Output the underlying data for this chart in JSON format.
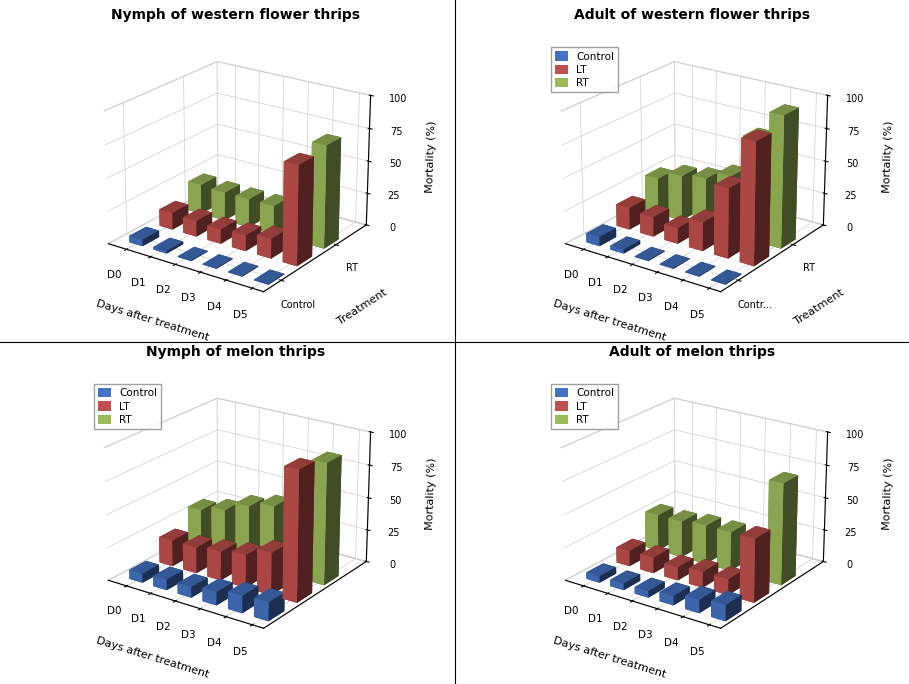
{
  "charts": [
    {
      "title": "Nymph of western flower thrips",
      "xlabel": "Days after treatment",
      "ylabel": "Mortality (%)",
      "zlabel": "Treatment",
      "days": [
        "D0",
        "D1",
        "D2",
        "D3",
        "D4",
        "D5"
      ],
      "control": [
        5,
        2,
        0,
        0,
        0,
        0
      ],
      "LT": [
        13,
        12,
        11,
        12,
        15,
        75
      ],
      "RT": [
        23,
        22,
        22,
        22,
        20,
        78
      ],
      "show_legend": false,
      "y_axis_labels": [
        "RT",
        "Control"
      ],
      "y_axis_label": "Treatment"
    },
    {
      "title": "Adult of western flower thrips",
      "xlabel": "Days after treatment",
      "ylabel": "Mortality (%)",
      "days": [
        "D0",
        "D1",
        "D2",
        "D3",
        "D4",
        "D5"
      ],
      "control": [
        7,
        3,
        0,
        0,
        0,
        0
      ],
      "LT": [
        17,
        15,
        12,
        22,
        53,
        92
      ],
      "RT": [
        28,
        35,
        38,
        45,
        78,
        100
      ],
      "show_legend": true,
      "y_axis_labels": [
        "Contr...",
        "RT"
      ],
      "y_axis_label": "Treatment"
    },
    {
      "title": "Nymph of melon thrips",
      "xlabel": "Days after treatment",
      "ylabel": "Mortality (%)",
      "days": [
        "D0",
        "D1",
        "D2",
        "D3",
        "D4",
        "D5"
      ],
      "control": [
        7,
        8,
        8,
        10,
        13,
        14
      ],
      "LT": [
        20,
        20,
        22,
        25,
        32,
        98
      ],
      "RT": [
        32,
        37,
        45,
        50,
        57,
        92
      ],
      "show_legend": true,
      "y_axis_labels": [],
      "y_axis_label": ""
    },
    {
      "title": "Adult of melon thrips",
      "xlabel": "Days after treatment",
      "ylabel": "Mortality (%)",
      "days": [
        "D0",
        "D1",
        "D2",
        "D3",
        "D4",
        "D5"
      ],
      "control": [
        5,
        5,
        5,
        7,
        10,
        12
      ],
      "LT": [
        12,
        12,
        10,
        12,
        12,
        48
      ],
      "RT": [
        28,
        28,
        30,
        30,
        28,
        77
      ],
      "show_legend": true,
      "y_axis_labels": [],
      "y_axis_label": ""
    }
  ],
  "colors": {
    "Control": "#4472C4",
    "LT": "#C0504D",
    "RT": "#9BBB59"
  },
  "bar_width": 0.55,
  "bar_depth": 0.55,
  "background_color": "#FFFFFF",
  "elev": 22,
  "azim": -55
}
